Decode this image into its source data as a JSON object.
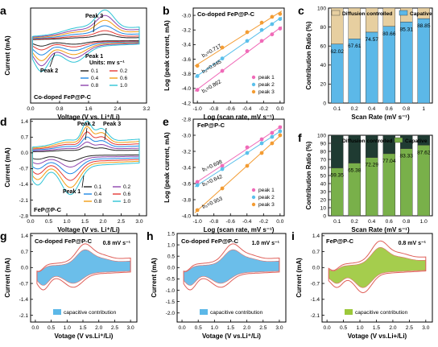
{
  "chart_data": [
    {
      "panel": "a",
      "type": "line",
      "title": "Co-doped FeP@P-C",
      "xlabel": "Voltage (V vs. Li⁺/Li)",
      "ylabel": "Current (mA)",
      "xlim": [
        0,
        3.2
      ],
      "ylim": [
        -2.0,
        1.0
      ],
      "xticks": [
        "0.0",
        "0.8",
        "1.6",
        "2.4",
        "3.2"
      ],
      "legend_title": "Units:  mv s⁻¹",
      "scan_rates": [
        "0.1",
        "0.2",
        "0.4",
        "0.6",
        "0.8",
        "1.0"
      ],
      "colors": [
        "#222222",
        "#e53935",
        "#1e88e5",
        "#f39c12",
        "#8e44ad",
        "#2ec4d6"
      ],
      "scales": [
        0.2,
        0.32,
        0.48,
        0.66,
        0.82,
        1.0
      ],
      "annotations": [
        "Peak 3",
        "Peak 1",
        "Peak 2"
      ]
    },
    {
      "panel": "b",
      "type": "scatter",
      "title": "Co-doped FeP@P-C",
      "xlabel": "Log (scan rate, mV s⁻¹)",
      "ylabel": "Log (peak current, mA)",
      "xlim": [
        -1.05,
        0.05
      ],
      "ylim": [
        -4.2,
        -2.9
      ],
      "xticks": [
        "-1.0",
        "-0.8",
        "-0.6",
        "-0.4",
        "-0.2",
        "0.0"
      ],
      "yticks": [
        "-4.2",
        "-4.0",
        "-3.8",
        "-3.6",
        "-3.4",
        "-3.2",
        "-3.0"
      ],
      "x": [
        -1.0,
        -0.699,
        -0.398,
        -0.222,
        -0.097,
        0.0
      ],
      "series": [
        {
          "name": "peak 1",
          "color": "#f06bb8",
          "values": [
            -4.02,
            -3.76,
            -3.49,
            -3.35,
            -3.26,
            -3.18
          ],
          "b": "b₁=0.862"
        },
        {
          "name": "peak 2",
          "color": "#5bc0eb",
          "values": [
            -3.83,
            -3.59,
            -3.35,
            -3.2,
            -3.12,
            -3.05
          ],
          "b": "b₂=0.845"
        },
        {
          "name": "peak 3",
          "color": "#f39c33",
          "values": [
            -3.69,
            -3.44,
            -3.23,
            -3.1,
            -3.02,
            -2.98
          ],
          "b": "b₃=0.717"
        }
      ]
    },
    {
      "panel": "c",
      "type": "bar",
      "categories": [
        "0.1",
        "0.2",
        "0.4",
        "0.6",
        "0.8",
        "1"
      ],
      "xlabel": "Scan Rate (mV s⁻¹)",
      "ylabel": "Contribution Ratio (%)",
      "ylim": [
        0,
        100
      ],
      "yticks": [
        "0",
        "20",
        "40",
        "60",
        "80",
        "100"
      ],
      "series": [
        {
          "name": "Diffusion controlled",
          "color": "#e7cfa0"
        },
        {
          "name": "Capative",
          "color": "#5cb8e8",
          "values": [
            62.02,
            67.61,
            74.57,
            80.66,
            85.31,
            88.85
          ]
        }
      ],
      "labels": [
        "62.02",
        "67.61",
        "74.57",
        "80.66",
        "85.31",
        "88.85"
      ]
    },
    {
      "panel": "d",
      "type": "line",
      "title": "FeP@P-C",
      "xlabel": "Voltage (V vs. Li⁺/Li)",
      "ylabel": "Current (mA)",
      "xlim": [
        0,
        3.2
      ],
      "ylim": [
        -2.8,
        1.5
      ],
      "xticks": [
        "0.0",
        "0.5",
        "1.0",
        "1.5",
        "2.0",
        "2.5",
        "3.0"
      ],
      "yticks": [
        "1.4",
        "0.7",
        "0.0",
        "-0.7",
        "-1.4",
        "-2.1",
        "-2.8"
      ],
      "scan_rates": [
        "0.1",
        "0.2",
        "0.4",
        "0.6",
        "0.8",
        "1.0"
      ],
      "colors": [
        "#222222",
        "#8e44ad",
        "#1e88e5",
        "#e53935",
        "#f39c12",
        "#2ec4d6"
      ],
      "scales": [
        0.2,
        0.34,
        0.5,
        0.66,
        0.83,
        1.0
      ],
      "annotations": [
        "Peak 2",
        "Peak 3",
        "Peak 1"
      ]
    },
    {
      "panel": "e",
      "type": "scatter",
      "title": "FeP@P-C",
      "xlabel": "Log (scan rate, mV s⁻¹)",
      "ylabel": "Log (peak current, mA)",
      "xlim": [
        -1.05,
        0.05
      ],
      "ylim": [
        -4.0,
        -2.8
      ],
      "xticks": [
        "-1.0",
        "-0.8",
        "-0.6",
        "-0.4",
        "-0.2",
        "0.0"
      ],
      "yticks": [
        "-2.8",
        "-3.0",
        "-3.2",
        "-3.4",
        "-3.6",
        "-3.8",
        "-4.0"
      ],
      "x": [
        -1.0,
        -0.699,
        -0.398,
        -0.222,
        -0.097,
        0.0
      ],
      "series": [
        {
          "name": "peak 1",
          "color": "#f06bb8",
          "values": [
            -3.58,
            -3.38,
            -3.15,
            -3.05,
            -2.97,
            -2.9
          ],
          "b": "b₁=0.698"
        },
        {
          "name": "peak 2",
          "color": "#5bc0eb",
          "values": [
            -3.62,
            -3.42,
            -3.22,
            -3.1,
            -3.02,
            -2.95
          ],
          "b": "b₂=0.642"
        },
        {
          "name": "peak 3",
          "color": "#f39c33",
          "values": [
            -3.93,
            -3.66,
            -3.38,
            -3.22,
            -3.1,
            -3.0
          ],
          "b": "b₃=0.953"
        }
      ]
    },
    {
      "panel": "f",
      "type": "bar",
      "categories": [
        "0.1",
        "0.2",
        "0.4",
        "0.6",
        "0.8",
        "1.0"
      ],
      "xlabel": "Scan Rate (mV s⁻¹)",
      "ylabel": "Contribution Ratio (%)",
      "ylim": [
        0,
        100
      ],
      "yticks": [
        "0",
        "10",
        "20",
        "30",
        "40",
        "50",
        "60",
        "70",
        "80",
        "90",
        "100"
      ],
      "series": [
        {
          "name": "Diffusion controlled",
          "color": "#1f3b32"
        },
        {
          "name": "Capative",
          "color": "#79b04a",
          "values": [
            59.35,
            65.38,
            72.29,
            77.04,
            83.33,
            87.62
          ]
        }
      ],
      "labels": [
        "59.35",
        "65.38",
        "72.29",
        "77.04",
        "83.33",
        "87.62"
      ]
    },
    {
      "panel": "g",
      "type": "area",
      "title": "Co-doped FeP@P-C",
      "scan_rate_label": "0.8 mV s⁻¹",
      "xlabel": "Votage (V vs.Li⁺/Li)",
      "ylabel": "Current (mA)",
      "xlim": [
        -0.15,
        3.2
      ],
      "ylim": [
        -2.4,
        1.5
      ],
      "xticks": [
        "0.0",
        "0.5",
        "1.0",
        "1.5",
        "2.0",
        "2.5",
        "3.0"
      ],
      "yticks": [
        "1.4",
        "0.7",
        "0.0",
        "-0.7",
        "-1.4",
        "-2.1"
      ],
      "fill": "#5cb8e8",
      "legend": "capacitive contribution",
      "outline": "#e0605a"
    },
    {
      "panel": "h",
      "type": "area",
      "title": "Co-doped FeP@P-C",
      "scan_rate_label": "1.0 mV s⁻¹",
      "xlabel": "Votage (V vs.Li⁺/Li)",
      "ylabel": "Current (mA)",
      "xlim": [
        -0.15,
        3.2
      ],
      "ylim": [
        -2.4,
        1.5
      ],
      "xticks": [
        "0.0",
        "0.5",
        "1.0",
        "1.5",
        "2.0",
        "2.5",
        "3.0"
      ],
      "yticks": [
        "1.5",
        "1.0",
        "0.5",
        "0.0",
        "-0.5",
        "-1.0",
        "-1.5",
        "-2.0"
      ],
      "fill": "#5cb8e8",
      "legend": "capacitive contribution",
      "outline": "#e0605a"
    },
    {
      "panel": "i",
      "type": "area",
      "title": "FeP@P-C",
      "scan_rate_label": "0.8 mV s⁻¹",
      "xlabel": "Votage (V vs.Li+/Li)",
      "ylabel": "Current (mA)",
      "xlim": [
        -0.15,
        3.2
      ],
      "ylim": [
        -2.4,
        1.5
      ],
      "xticks": [
        "0.0",
        "0.5",
        "1.0",
        "1.5",
        "2.0",
        "2.5",
        "3.0"
      ],
      "yticks": [
        "1.4",
        "0.7",
        "0.0",
        "-0.7",
        "-1.4",
        "-2.1"
      ],
      "fill": "#9cc83a",
      "legend": "capacitive contribution",
      "outline": "#e0605a"
    }
  ]
}
